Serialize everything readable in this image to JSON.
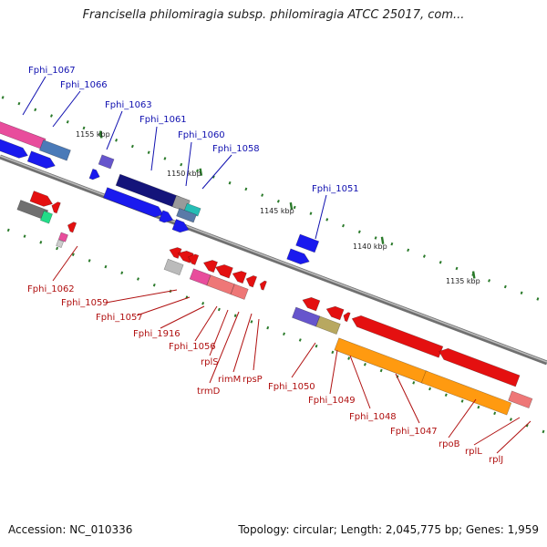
{
  "title": "Francisella philomiragia subsp. philomiragia ATCC 25017, com...",
  "accession": "Accession: NC_010336",
  "stats": "Topology: circular; Length: 2,045,775 bp; Genes: 1,959",
  "scale_labels": [
    "1155 kbp",
    "1150 kbp",
    "1145 kbp",
    "1140 kbp",
    "1135 kbp"
  ],
  "upper_strand_labels": [
    "Fphi_1067",
    "Fphi_1066",
    "Fphi_1063",
    "Fphi_1061",
    "Fphi_1060",
    "Fphi_1058",
    "Fphi_1051"
  ],
  "lower_strand_labels": [
    "Fphi_1062",
    "Fphi_1059",
    "Fphi_1057",
    "Fphi_1916",
    "Fphi_1056",
    "rplS",
    "trmD",
    "rimM",
    "rpsP",
    "Fphi_1050",
    "Fphi_1049",
    "Fphi_1048",
    "Fphi_1047",
    "rpoB",
    "rplL",
    "rplJ"
  ],
  "colors": {
    "upper_label": "#1010b0",
    "lower_label": "#b01010",
    "backbone": "#707070",
    "tick": "#2a7a2a",
    "gene_blue": "#1a1aee",
    "gene_navy": "#14147a",
    "gene_red": "#e41010",
    "gene_orange": "#ff9a10",
    "gene_pink": "#e84d9c",
    "gene_salmon": "#ee7777",
    "gene_gray": "#9a9a9a",
    "gene_teal": "#26bdb5",
    "gene_purple": "#6655cc",
    "gene_olive": "#b8a860"
  }
}
